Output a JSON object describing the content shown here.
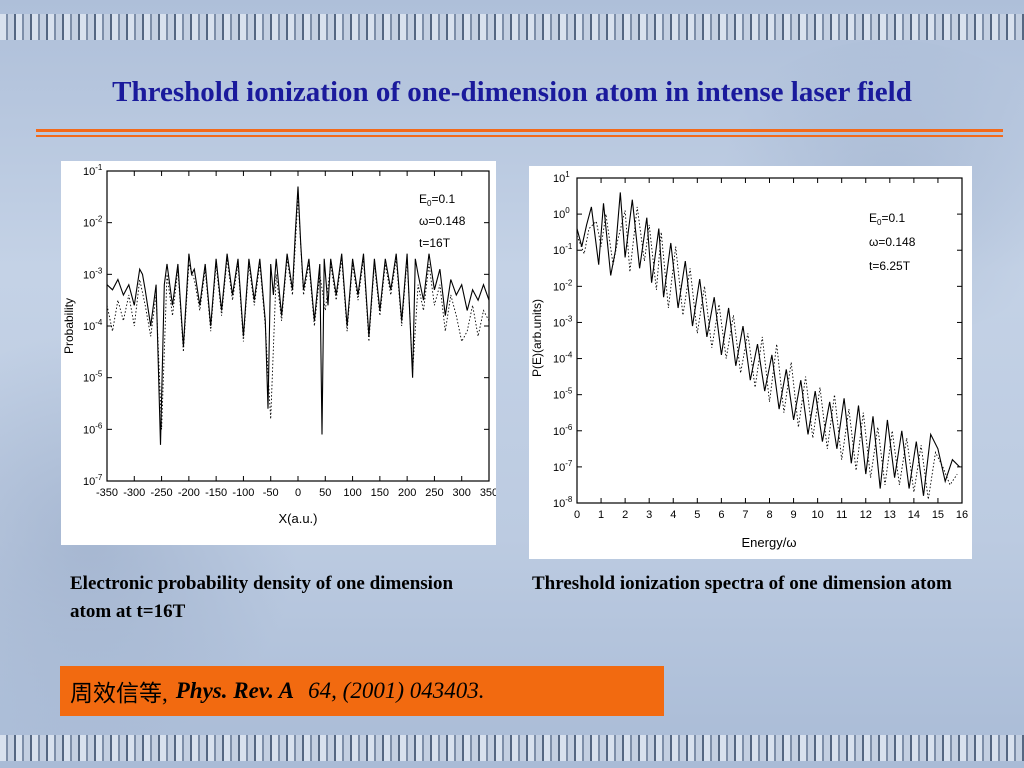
{
  "slide": {
    "title": "Threshold ionization of one-dimension atom in intense laser field",
    "colors": {
      "title": "#1a1a9c",
      "accent": "#f36a1a",
      "background": "#b8c8e0"
    }
  },
  "captions": {
    "left": "Electronic probability density of one dimension atom at t=16T",
    "right": "Threshold ionization spectra of one dimension atom"
  },
  "citation": {
    "authors": "周效信等,",
    "journal": "Phys. Rev. A",
    "reference": "64, (2001) 043403."
  },
  "chart_data": [
    {
      "type": "line",
      "xlabel": "X(a.u.)",
      "ylabel": "Probability",
      "xlim": [
        -350,
        350
      ],
      "ylim": [
        1e-07,
        0.1
      ],
      "yscale": "log",
      "x_ticks": [
        "-350",
        "-300",
        "-250",
        "-200",
        "-150",
        "-100",
        "-50",
        "0",
        "50",
        "100",
        "150",
        "200",
        "250",
        "300",
        "350"
      ],
      "y_ticks": [
        {
          "base": "10",
          "exp": "-1"
        },
        {
          "base": "10",
          "exp": "-2"
        },
        {
          "base": "10",
          "exp": "-3"
        },
        {
          "base": "10",
          "exp": "-4"
        },
        {
          "base": "10",
          "exp": "-5"
        },
        {
          "base": "10",
          "exp": "-6"
        },
        {
          "base": "10",
          "exp": "-7"
        }
      ],
      "annotation": {
        "e0_prefix": "E",
        "e0_sub": "0",
        "e0_value": "=0.1",
        "omega": "ω=0.148",
        "time": "t=16T"
      },
      "series": [
        {
          "style": "solid",
          "x": [
            -350,
            -340,
            -330,
            -320,
            -310,
            -300,
            -290,
            -285,
            -280,
            -270,
            -260,
            -252,
            -245,
            -240,
            -230,
            -220,
            -210,
            -200,
            -195,
            -190,
            -180,
            -170,
            -160,
            -150,
            -140,
            -130,
            -120,
            -110,
            -100,
            -90,
            -80,
            -70,
            -60,
            -55,
            -50,
            -45,
            -40,
            -30,
            -20,
            -10,
            -5,
            0,
            5,
            10,
            20,
            30,
            40,
            44,
            48,
            55,
            60,
            70,
            80,
            90,
            100,
            110,
            120,
            130,
            140,
            150,
            160,
            170,
            180,
            190,
            200,
            210,
            215,
            220,
            230,
            240,
            250,
            260,
            270,
            280,
            290,
            300,
            310,
            320,
            330,
            340,
            350
          ],
          "y": [
            -3.2,
            -3.3,
            -3.1,
            -3.4,
            -3.2,
            -3.6,
            -2.9,
            -3.0,
            -3.3,
            -4.0,
            -3.2,
            -6.3,
            -3.2,
            -2.8,
            -3.6,
            -2.8,
            -4.4,
            -2.6,
            -3.0,
            -2.9,
            -3.6,
            -2.8,
            -4.0,
            -2.7,
            -3.7,
            -2.6,
            -3.4,
            -2.7,
            -4.2,
            -2.7,
            -3.5,
            -2.7,
            -3.9,
            -5.6,
            -2.8,
            -3.4,
            -2.7,
            -3.8,
            -2.6,
            -3.3,
            -2.2,
            -1.3,
            -2.4,
            -3.3,
            -2.7,
            -3.9,
            -2.8,
            -6.1,
            -2.7,
            -3.6,
            -2.7,
            -3.4,
            -2.6,
            -4.0,
            -2.7,
            -3.4,
            -2.6,
            -4.2,
            -2.7,
            -3.7,
            -2.7,
            -3.3,
            -2.6,
            -3.9,
            -2.6,
            -5.0,
            -2.7,
            -3.0,
            -3.5,
            -2.6,
            -3.3,
            -2.9,
            -3.8,
            -3.1,
            -3.4,
            -3.2,
            -3.7,
            -3.3,
            -3.5,
            -3.2,
            -3.5
          ]
        },
        {
          "style": "dotted",
          "x": [
            -350,
            -340,
            -330,
            -320,
            -310,
            -300,
            -290,
            -280,
            -270,
            -260,
            -250,
            -240,
            -230,
            -220,
            -210,
            -200,
            -190,
            -180,
            -170,
            -160,
            -150,
            -140,
            -130,
            -120,
            -110,
            -100,
            -90,
            -80,
            -70,
            -60,
            -50,
            -40,
            -30,
            -20,
            -10,
            0,
            10,
            20,
            30,
            40,
            50,
            60,
            70,
            80,
            90,
            100,
            110,
            120,
            130,
            140,
            150,
            160,
            170,
            180,
            190,
            200,
            210,
            220,
            230,
            240,
            250,
            260,
            270,
            280,
            290,
            300,
            310,
            320,
            330,
            340,
            350
          ],
          "y": [
            -3.6,
            -4.1,
            -3.5,
            -3.9,
            -3.4,
            -4.0,
            -3.1,
            -3.6,
            -4.2,
            -3.4,
            -6.0,
            -3.0,
            -3.8,
            -2.9,
            -4.5,
            -2.8,
            -3.1,
            -3.7,
            -2.9,
            -4.1,
            -2.8,
            -3.8,
            -2.7,
            -3.5,
            -2.8,
            -4.3,
            -2.8,
            -3.6,
            -2.8,
            -4.0,
            -5.8,
            -3.0,
            -3.9,
            -2.7,
            -3.4,
            -1.5,
            -3.4,
            -2.8,
            -4.0,
            -3.0,
            -3.7,
            -2.8,
            -3.5,
            -2.7,
            -4.1,
            -2.8,
            -3.5,
            -2.7,
            -4.3,
            -2.8,
            -3.8,
            -2.8,
            -3.4,
            -2.7,
            -4.0,
            -2.7,
            -4.9,
            -3.2,
            -3.7,
            -2.8,
            -3.6,
            -3.2,
            -4.1,
            -3.4,
            -3.8,
            -4.3,
            -4.1,
            -3.6,
            -4.2,
            -3.7,
            -3.9
          ]
        }
      ]
    },
    {
      "type": "line",
      "xlabel": "Energy/ω",
      "ylabel": "P(E)(arb.units)",
      "xlim": [
        0,
        16
      ],
      "ylim": [
        1e-08,
        10.0
      ],
      "yscale": "log",
      "x_ticks": [
        "0",
        "1",
        "2",
        "3",
        "4",
        "5",
        "6",
        "7",
        "8",
        "9",
        "10",
        "11",
        "12",
        "13",
        "14",
        "15",
        "16"
      ],
      "y_ticks": [
        {
          "base": "10",
          "exp": "1"
        },
        {
          "base": "10",
          "exp": "0"
        },
        {
          "base": "10",
          "exp": "-1"
        },
        {
          "base": "10",
          "exp": "-2"
        },
        {
          "base": "10",
          "exp": "-3"
        },
        {
          "base": "10",
          "exp": "-4"
        },
        {
          "base": "10",
          "exp": "-5"
        },
        {
          "base": "10",
          "exp": "-6"
        },
        {
          "base": "10",
          "exp": "-7"
        },
        {
          "base": "10",
          "exp": "-8"
        }
      ],
      "annotation": {
        "e0_prefix": "E",
        "e0_sub": "0",
        "e0_value": "=0.1",
        "omega": "ω=0.148",
        "time": "t=6.25T"
      },
      "series": [
        {
          "style": "solid",
          "x": [
            0,
            0.2,
            0.4,
            0.6,
            0.9,
            1.1,
            1.4,
            1.6,
            1.8,
            2.0,
            2.3,
            2.6,
            2.9,
            3.1,
            3.4,
            3.6,
            3.9,
            4.2,
            4.5,
            4.8,
            5.1,
            5.4,
            5.7,
            6.0,
            6.3,
            6.6,
            6.9,
            7.2,
            7.5,
            7.8,
            8.1,
            8.4,
            8.7,
            9.0,
            9.3,
            9.6,
            9.9,
            10.2,
            10.5,
            10.8,
            11.1,
            11.4,
            11.7,
            12.0,
            12.3,
            12.6,
            12.9,
            13.2,
            13.5,
            13.8,
            14.1,
            14.4,
            14.7,
            15.0,
            15.3,
            15.6,
            15.9
          ],
          "y": [
            -0.4,
            -0.9,
            -0.3,
            0.2,
            -1.4,
            0.3,
            -1.7,
            -1.0,
            0.6,
            -1.2,
            0.4,
            -1.5,
            -0.1,
            -1.9,
            -0.4,
            -2.3,
            -0.8,
            -2.6,
            -1.3,
            -3.1,
            -1.8,
            -3.4,
            -2.3,
            -3.9,
            -2.6,
            -4.2,
            -3.1,
            -4.6,
            -3.6,
            -4.9,
            -3.9,
            -5.4,
            -4.3,
            -5.7,
            -4.6,
            -6.1,
            -4.9,
            -6.3,
            -5.2,
            -6.5,
            -5.1,
            -6.9,
            -5.3,
            -7.2,
            -5.6,
            -7.6,
            -5.7,
            -7.3,
            -6.0,
            -7.6,
            -6.3,
            -7.8,
            -6.1,
            -6.5,
            -7.4,
            -6.8,
            -7.0
          ]
        },
        {
          "style": "dotted",
          "x": [
            0,
            0.3,
            0.5,
            0.8,
            1.0,
            1.2,
            1.5,
            1.7,
            2.0,
            2.2,
            2.5,
            2.8,
            3.0,
            3.3,
            3.5,
            3.8,
            4.1,
            4.4,
            4.7,
            5.0,
            5.3,
            5.6,
            5.9,
            6.2,
            6.5,
            6.8,
            7.1,
            7.4,
            7.7,
            8.0,
            8.3,
            8.6,
            8.9,
            9.2,
            9.5,
            9.8,
            10.1,
            10.4,
            10.7,
            11.0,
            11.3,
            11.6,
            11.9,
            12.2,
            12.5,
            12.8,
            13.1,
            13.4,
            13.7,
            14.0,
            14.3,
            14.6,
            14.9,
            15.2,
            15.5,
            15.8
          ],
          "y": [
            -0.6,
            -1.1,
            -0.4,
            -0.2,
            -0.9,
            0.0,
            -1.4,
            -0.7,
            0.1,
            -1.6,
            0.2,
            -1.3,
            -0.3,
            -2.1,
            -0.5,
            -2.6,
            -0.9,
            -2.8,
            -1.5,
            -3.3,
            -2.0,
            -3.7,
            -2.5,
            -4.0,
            -2.8,
            -4.4,
            -3.3,
            -4.8,
            -3.4,
            -5.2,
            -3.6,
            -5.5,
            -4.1,
            -5.9,
            -4.5,
            -6.2,
            -4.8,
            -6.5,
            -5.0,
            -6.8,
            -5.4,
            -7.1,
            -5.5,
            -7.3,
            -5.9,
            -7.5,
            -6.0,
            -7.5,
            -6.2,
            -7.7,
            -6.4,
            -7.9,
            -6.6,
            -7.0,
            -7.5,
            -7.2
          ]
        }
      ]
    }
  ]
}
